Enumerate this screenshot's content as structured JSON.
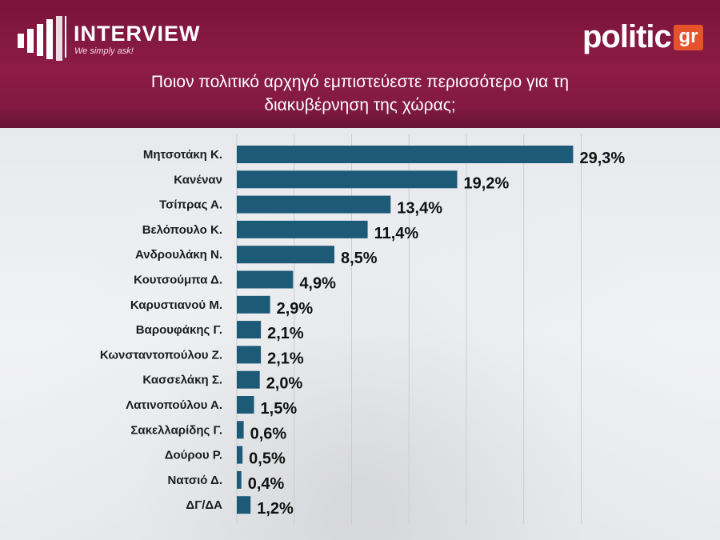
{
  "header": {
    "brand_name": "INTERVIEW",
    "brand_tagline": "We simply ask!",
    "partner_word": "politic",
    "partner_suffix": "gr",
    "title_line1": "Ποιον πολιτικό αρχηγό εμπιστεύεστε περισσότερο για τη",
    "title_line2": "διακυβέρνηση της χώρας;"
  },
  "colors": {
    "header_bg": "#85193f",
    "bar": "#1d5a78",
    "partner_accent": "#e5532b"
  },
  "chart_data": {
    "type": "bar",
    "orientation": "horizontal",
    "title": "Ποιον πολιτικό αρχηγό εμπιστεύεστε περισσότερο για τη διακυβέρνηση της χώρας;",
    "categories": [
      "Μητσοτάκη Κ.",
      "Κανέναν",
      "Τσίπρας Α.",
      "Βελόπουλο Κ.",
      "Ανδρουλάκη Ν.",
      "Κουτσούμπα Δ.",
      "Καρυστιανού Μ.",
      "Βαρουφάκης Γ.",
      "Κωνσταντοπούλου Ζ.",
      "Κασσελάκη Σ.",
      "Λατινοπούλου Α.",
      "Σακελλαρίδης Γ.",
      "Δούρου Ρ.",
      "Νατσιό Δ.",
      "ΔΓ/ΔΑ"
    ],
    "values": [
      29.3,
      19.2,
      13.4,
      11.4,
      8.5,
      4.9,
      2.9,
      2.1,
      2.1,
      2.0,
      1.5,
      0.6,
      0.5,
      0.4,
      1.2
    ],
    "value_labels": [
      "29,3%",
      "19,2%",
      "13,4%",
      "11,4%",
      "8,5%",
      "4,9%",
      "2,9%",
      "2,1%",
      "2,1%",
      "2,0%",
      "1,5%",
      "0,6%",
      "0,5%",
      "0,4%",
      "1,2%"
    ],
    "xlim": [
      0,
      30
    ],
    "grid": true
  }
}
